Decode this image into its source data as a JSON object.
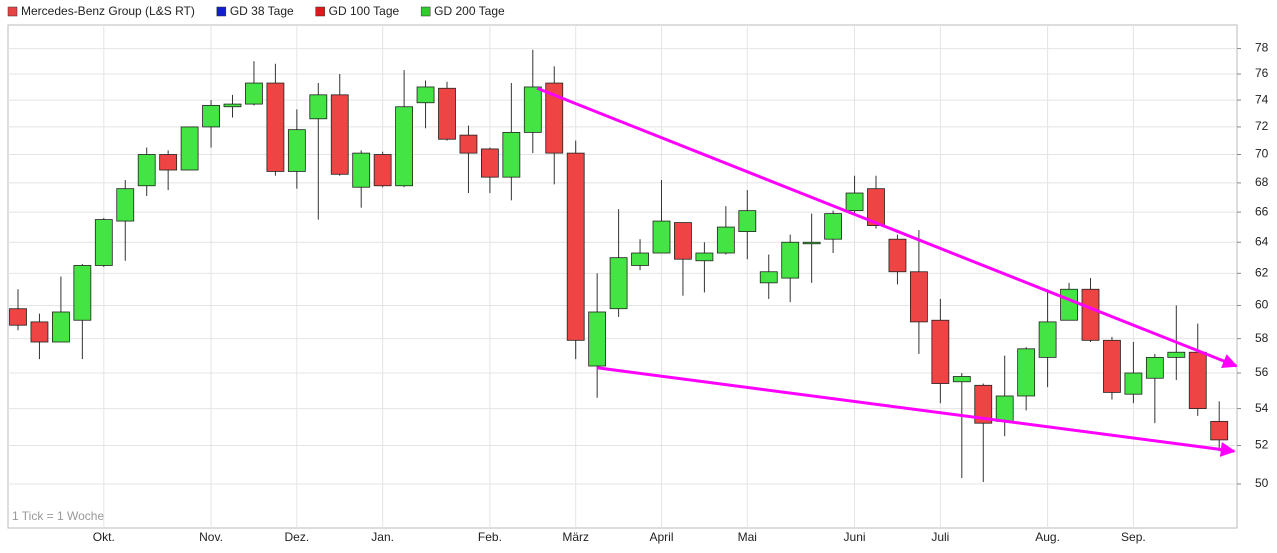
{
  "chart_data": {
    "type": "candlestick",
    "legend": [
      {
        "name": "Mercedes-Benz Group (L&S RT)",
        "color": "#e84343"
      },
      {
        "name": "GD 38 Tage",
        "color": "#1020c8"
      },
      {
        "name": "GD 100 Tage",
        "color": "#dd1a1a"
      },
      {
        "name": "GD 200 Tage",
        "color": "#2ecc2e"
      }
    ],
    "up_color": "#44e444",
    "down_color": "#ee4444",
    "footnote": "1 Tick = 1 Woche",
    "log_scale": true,
    "grid": true,
    "categories": [
      null,
      null,
      null,
      null,
      "Okt.",
      null,
      null,
      null,
      null,
      "Nov.",
      null,
      null,
      null,
      "Dez.",
      null,
      null,
      null,
      "Jan.",
      null,
      null,
      null,
      null,
      "Feb.",
      null,
      null,
      null,
      "März",
      null,
      null,
      null,
      "April",
      null,
      null,
      null,
      "Mai",
      null,
      null,
      null,
      null,
      "Juni",
      null,
      null,
      null,
      "Juli",
      null,
      null,
      null,
      null,
      "Aug.",
      null,
      null,
      null,
      "Sep.",
      null,
      null,
      null,
      null
    ],
    "open": [
      59.8,
      59,
      57.8,
      59.1,
      62.5,
      65.4,
      67.8,
      70,
      68.9,
      72,
      73.5,
      73.7,
      75.3,
      68.8,
      72.6,
      74.4,
      67.7,
      70,
      67.8,
      73.8,
      74.9,
      71.4,
      70.4,
      68.4,
      71.6,
      75.3,
      70.1,
      56.4,
      59.8,
      62.5,
      63.3,
      65.3,
      62.8,
      63.3,
      64.7,
      61.4,
      61.7,
      63.9,
      64.2,
      66.1,
      67.6,
      64.2,
      62.1,
      59.1,
      55.5,
      55.3,
      53.3,
      54.7,
      56.9,
      59.1,
      61,
      57.9,
      54.8,
      55.7,
      56.9,
      57.2,
      53.3
    ],
    "high": [
      61,
      59.5,
      61.8,
      62.6,
      65.6,
      68.2,
      70.5,
      70.3,
      72,
      74,
      74.4,
      77,
      76.8,
      73.3,
      75.3,
      76,
      70.3,
      70.2,
      76.3,
      75.5,
      75.4,
      72.1,
      70.5,
      75.3,
      77.9,
      76.6,
      71,
      62,
      66.2,
      64.2,
      68.2,
      65.3,
      64,
      66.4,
      67.5,
      63.2,
      64.5,
      65.9,
      66.1,
      68.5,
      68.5,
      64.5,
      64.8,
      60.4,
      56,
      55.4,
      57,
      57.5,
      61,
      61.4,
      61.7,
      58.1,
      57.8,
      57.1,
      60,
      58.9,
      54.4
    ],
    "low": [
      58.5,
      56.8,
      57.8,
      56.8,
      62.4,
      62.8,
      67.1,
      67.5,
      68.9,
      70.5,
      72.7,
      73.6,
      68.5,
      67.6,
      65.5,
      68.5,
      66.3,
      67.7,
      67.7,
      71.9,
      71,
      67.3,
      67.3,
      66.8,
      70.1,
      67.9,
      56.8,
      54.6,
      59.3,
      62.2,
      63.3,
      60.6,
      60.8,
      63.2,
      62.9,
      60.4,
      60.2,
      61.4,
      63.3,
      65.8,
      64.9,
      61.3,
      57.1,
      54.3,
      50.3,
      50.1,
      52.5,
      53.9,
      55.2,
      59.1,
      57.8,
      54.5,
      54.3,
      53.2,
      55.6,
      53.6,
      51.7
    ],
    "close": [
      58.8,
      57.8,
      59.6,
      62.5,
      65.5,
      67.6,
      70,
      68.9,
      72,
      73.6,
      73.7,
      75.3,
      68.8,
      71.8,
      74.4,
      68.6,
      70.1,
      67.8,
      73.5,
      75,
      71.1,
      70.1,
      68.4,
      71.6,
      75,
      70.1,
      57.9,
      59.6,
      63,
      63.3,
      65.4,
      62.9,
      63.3,
      65,
      66.1,
      62.1,
      64,
      64,
      65.9,
      67.3,
      65.1,
      62.1,
      59,
      55.4,
      55.8,
      53.2,
      54.7,
      57.4,
      59,
      61,
      57.9,
      54.9,
      56,
      56.9,
      57.2,
      54,
      52.3
    ],
    "ylim": [
      47.8,
      79.9
    ],
    "yticks": [
      50,
      52,
      54,
      56,
      58,
      60,
      62,
      64,
      66,
      68,
      70,
      72,
      74,
      76,
      78
    ],
    "trendlines": [
      {
        "color": "#ff00ff",
        "start": [
          24.2,
          74.9
        ],
        "end": [
          56.8,
          56.4
        ]
      },
      {
        "color": "#ff00ff",
        "start": [
          27,
          56.3
        ],
        "end": [
          56.7,
          51.7
        ]
      }
    ]
  }
}
